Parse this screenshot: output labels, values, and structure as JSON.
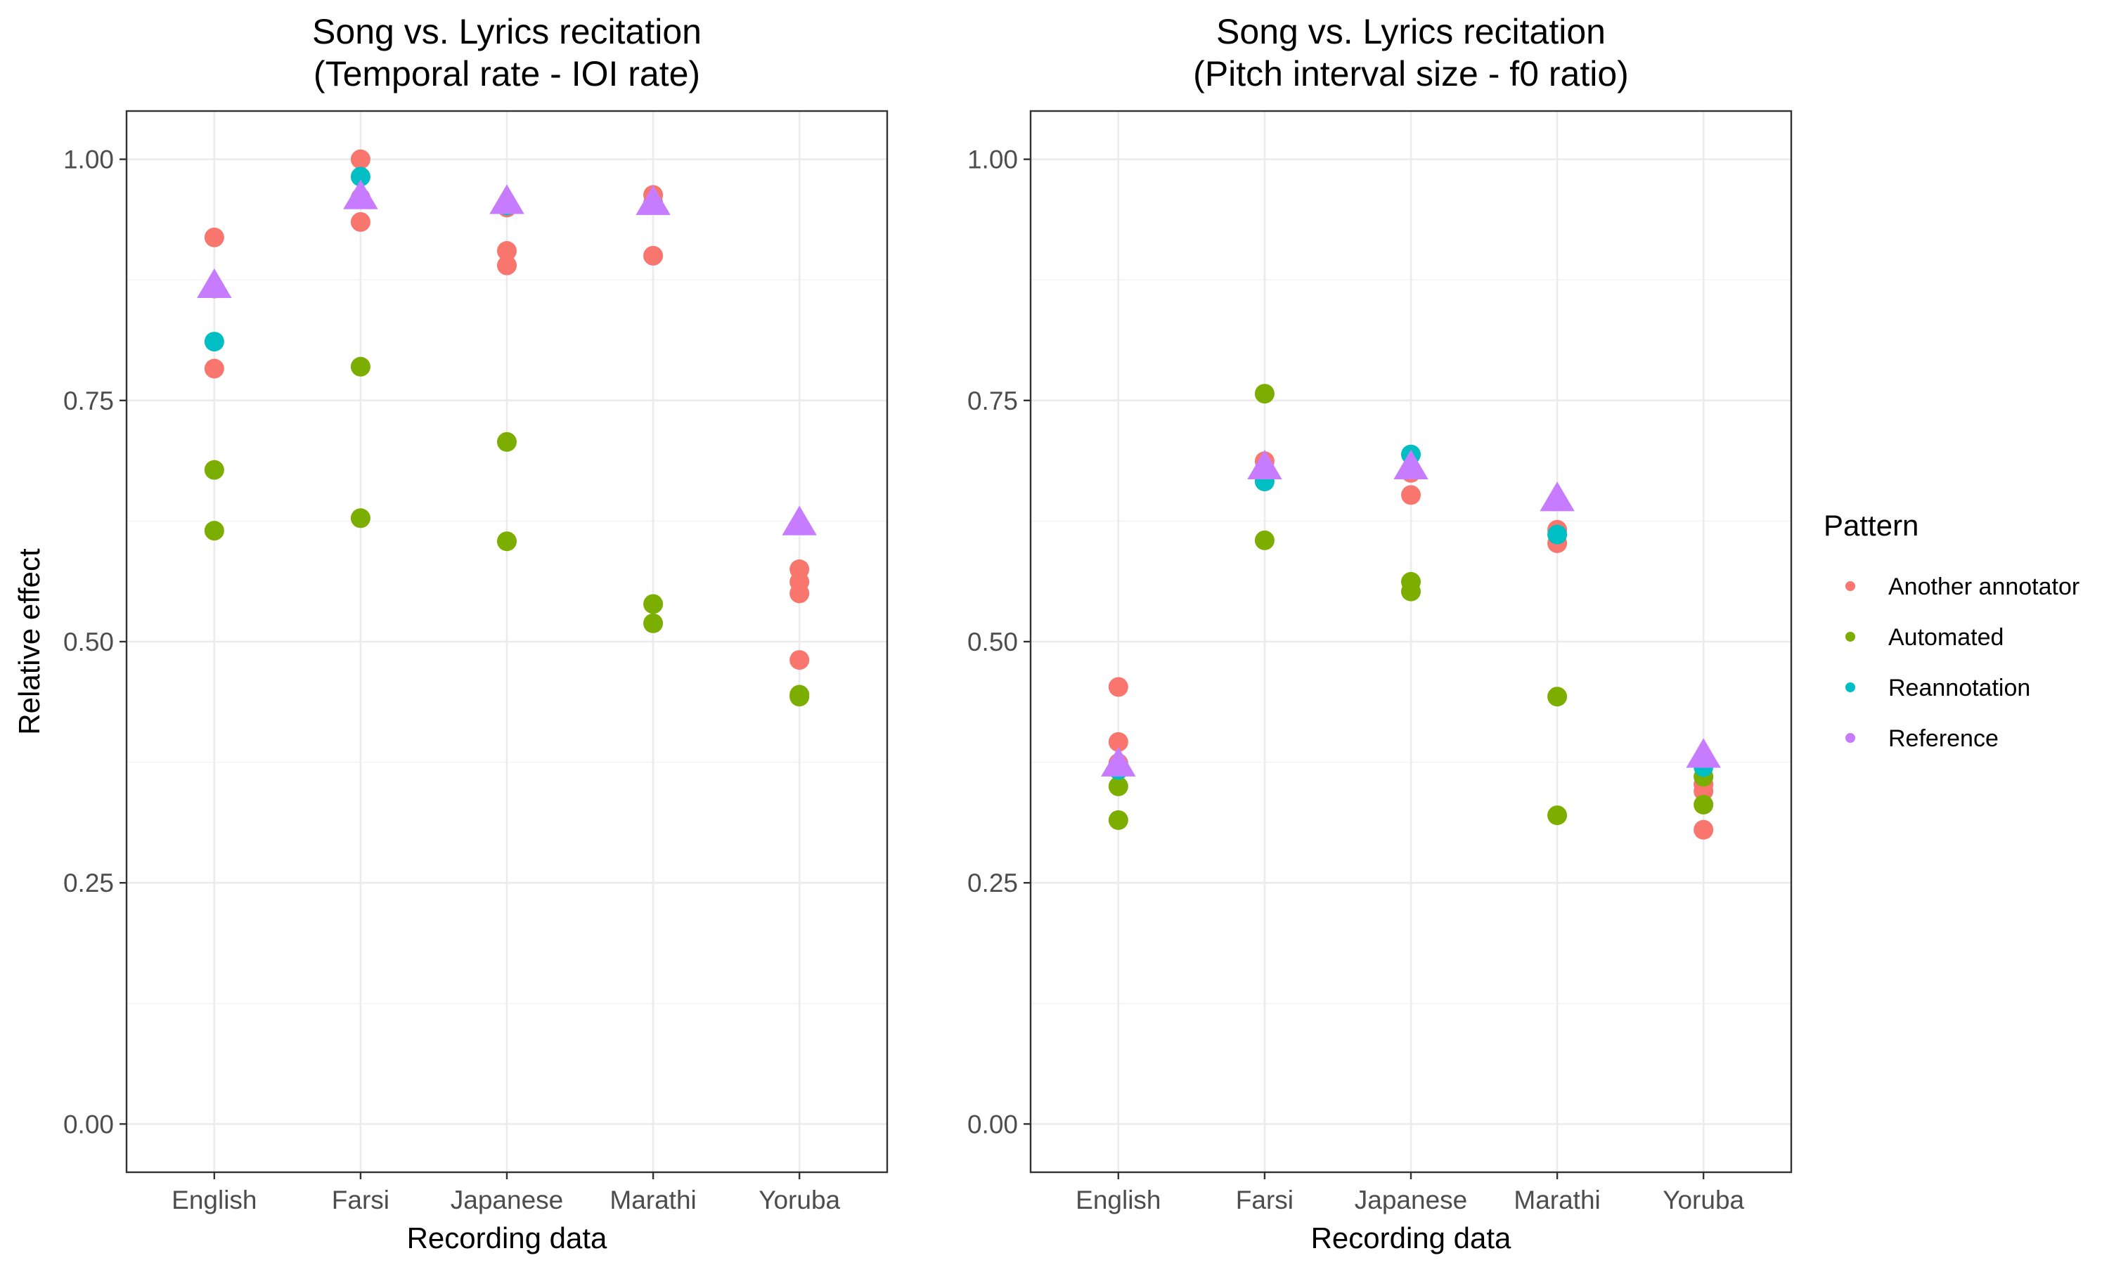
{
  "chart_data": [
    {
      "type": "scatter",
      "title": "Song vs. Lyrics recitation\n(Temporal rate - IOI rate)",
      "xlabel": "Recording data",
      "ylabel": "Relative effect",
      "categories": [
        "English",
        "Farsi",
        "Japanese",
        "Marathi",
        "Yoruba"
      ],
      "ylim": [
        -0.05,
        1.05
      ],
      "yticks": [
        "0.00",
        "0.25",
        "0.50",
        "0.75",
        "1.00"
      ],
      "grid": true,
      "series": [
        {
          "name": "Another annotator",
          "color": "#F8766D",
          "shape": "circle",
          "points": [
            [
              "English",
              0.919
            ],
            [
              "English",
              0.783
            ],
            [
              "English",
              0.866
            ],
            [
              "Farsi",
              1.0
            ],
            [
              "Farsi",
              0.935
            ],
            [
              "Farsi",
              0.96
            ],
            [
              "Japanese",
              0.905
            ],
            [
              "Japanese",
              0.89
            ],
            [
              "Japanese",
              0.95
            ],
            [
              "Marathi",
              0.963
            ],
            [
              "Marathi",
              0.9
            ],
            [
              "Marathi",
              0.955
            ],
            [
              "Yoruba",
              0.575
            ],
            [
              "Yoruba",
              0.562
            ],
            [
              "Yoruba",
              0.55
            ],
            [
              "Yoruba",
              0.481
            ]
          ]
        },
        {
          "name": "Automated",
          "color": "#7CAE00",
          "shape": "circle",
          "points": [
            [
              "English",
              0.678
            ],
            [
              "English",
              0.615
            ],
            [
              "Farsi",
              0.785
            ],
            [
              "Farsi",
              0.628
            ],
            [
              "Japanese",
              0.707
            ],
            [
              "Japanese",
              0.604
            ],
            [
              "Marathi",
              0.539
            ],
            [
              "Marathi",
              0.519
            ],
            [
              "Yoruba",
              0.445
            ],
            [
              "Yoruba",
              0.443
            ]
          ]
        },
        {
          "name": "Reannotation",
          "color": "#00BFC4",
          "shape": "circle",
          "points": [
            [
              "English",
              0.811
            ],
            [
              "Farsi",
              0.982
            ],
            [
              "Japanese",
              0.952
            ],
            [
              "Marathi",
              0.953
            ]
          ]
        },
        {
          "name": "Reference",
          "color": "#C77CFF",
          "shape": "triangle",
          "points": [
            [
              "English",
              0.868
            ],
            [
              "Farsi",
              0.96
            ],
            [
              "Japanese",
              0.955
            ],
            [
              "Marathi",
              0.954
            ],
            [
              "Yoruba",
              0.622
            ]
          ]
        }
      ]
    },
    {
      "type": "scatter",
      "title": "Song vs. Lyrics recitation\n(Pitch interval size - f0 ratio)",
      "xlabel": "Recording data",
      "ylabel": "",
      "categories": [
        "English",
        "Farsi",
        "Japanese",
        "Marathi",
        "Yoruba"
      ],
      "ylim": [
        -0.05,
        1.05
      ],
      "yticks": [
        "0.00",
        "0.25",
        "0.50",
        "0.75",
        "1.00"
      ],
      "grid": true,
      "series": [
        {
          "name": "Another annotator",
          "color": "#F8766D",
          "shape": "circle",
          "points": [
            [
              "English",
              0.453
            ],
            [
              "English",
              0.396
            ],
            [
              "English",
              0.374
            ],
            [
              "Farsi",
              0.687
            ],
            [
              "Japanese",
              0.652
            ],
            [
              "Japanese",
              0.675
            ],
            [
              "Marathi",
              0.616
            ],
            [
              "Marathi",
              0.602
            ],
            [
              "Yoruba",
              0.352
            ],
            [
              "Yoruba",
              0.345
            ],
            [
              "Yoruba",
              0.305
            ]
          ]
        },
        {
          "name": "Automated",
          "color": "#7CAE00",
          "shape": "circle",
          "points": [
            [
              "English",
              0.35
            ],
            [
              "English",
              0.315
            ],
            [
              "Farsi",
              0.757
            ],
            [
              "Farsi",
              0.605
            ],
            [
              "Japanese",
              0.562
            ],
            [
              "Japanese",
              0.552
            ],
            [
              "Marathi",
              0.443
            ],
            [
              "Marathi",
              0.32
            ],
            [
              "Yoruba",
              0.331
            ],
            [
              "Yoruba",
              0.36
            ]
          ]
        },
        {
          "name": "Reannotation",
          "color": "#00BFC4",
          "shape": "circle",
          "points": [
            [
              "English",
              0.367
            ],
            [
              "Farsi",
              0.666
            ],
            [
              "Japanese",
              0.694
            ],
            [
              "Marathi",
              0.611
            ],
            [
              "Yoruba",
              0.37
            ]
          ]
        },
        {
          "name": "Reference",
          "color": "#C77CFF",
          "shape": "triangle",
          "points": [
            [
              "English",
              0.372
            ],
            [
              "Farsi",
              0.68
            ],
            [
              "Japanese",
              0.68
            ],
            [
              "Marathi",
              0.647
            ],
            [
              "Yoruba",
              0.381
            ]
          ]
        }
      ]
    }
  ],
  "legend": {
    "title": "Pattern",
    "position": "right",
    "items": [
      {
        "label": "Another annotator",
        "color": "#F8766D"
      },
      {
        "label": "Automated",
        "color": "#7CAE00"
      },
      {
        "label": "Reannotation",
        "color": "#00BFC4"
      },
      {
        "label": "Reference",
        "color": "#C77CFF"
      }
    ]
  }
}
